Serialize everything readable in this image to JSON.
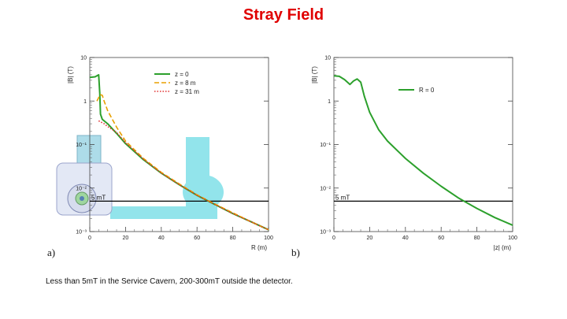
{
  "slide": {
    "title": "Stray Field",
    "caption": "Less than 5mT in the Service Cavern, 200-300mT outside the detector."
  },
  "colors": {
    "title": "#e00000",
    "z0": "#2ca02c",
    "z8": "#e8a000",
    "z31": "#e03030",
    "ref_line": "#000000",
    "cavern": "#7fe0e8"
  },
  "chart_data": [
    {
      "type": "line",
      "panel_label": "a)",
      "xlabel": "R (m)",
      "ylabel": "|B| (T)",
      "xlim": [
        0,
        100
      ],
      "ylim": [
        0.001,
        10
      ],
      "yscale": "log",
      "xticks": [
        0,
        20,
        40,
        60,
        80,
        100
      ],
      "yticks": [
        {
          "value": 0.001,
          "label": "10⁻³"
        },
        {
          "value": 0.01,
          "label": "10⁻²"
        },
        {
          "value": 0.1,
          "label": "10⁻¹"
        },
        {
          "value": 1,
          "label": "1"
        },
        {
          "value": 10,
          "label": "10"
        }
      ],
      "legend_position": "top-center",
      "reference_line": {
        "y": 0.005,
        "label": "5 mT"
      },
      "series": [
        {
          "name": "z = 0",
          "style": "solid",
          "x": [
            0,
            3,
            5,
            5.6,
            6,
            7,
            10,
            15,
            20,
            30,
            40,
            50,
            60,
            70,
            80,
            90,
            100
          ],
          "y": [
            3.5,
            3.6,
            4.0,
            1.5,
            0.5,
            0.38,
            0.3,
            0.18,
            0.105,
            0.045,
            0.022,
            0.012,
            0.0068,
            0.0042,
            0.0026,
            0.0017,
            0.0011
          ]
        },
        {
          "name": "z = 8 m",
          "style": "dashed",
          "x": [
            4,
            5,
            6,
            7,
            8,
            10,
            15,
            20,
            30,
            40,
            50,
            60,
            70,
            80,
            90,
            100
          ],
          "y": [
            1.0,
            1.2,
            1.4,
            1.35,
            1.0,
            0.6,
            0.25,
            0.12,
            0.048,
            0.023,
            0.0125,
            0.007,
            0.0043,
            0.0027,
            0.0017,
            0.0011
          ]
        },
        {
          "name": "z = 31 m",
          "style": "dotted",
          "x": [
            5,
            8,
            10,
            15,
            20,
            30,
            40,
            50,
            60,
            70,
            80,
            90,
            100
          ],
          "y": [
            0.35,
            0.3,
            0.26,
            0.19,
            0.11,
            0.046,
            0.022,
            0.012,
            0.0068,
            0.0042,
            0.0026,
            0.0017,
            0.0011
          ]
        }
      ]
    },
    {
      "type": "line",
      "panel_label": "b)",
      "xlabel": "|z| (m)",
      "ylabel": "|B| (T)",
      "xlim": [
        0,
        100
      ],
      "ylim": [
        0.001,
        10
      ],
      "yscale": "log",
      "xticks": [
        0,
        20,
        40,
        60,
        80,
        100
      ],
      "yticks": [
        {
          "value": 0.001,
          "label": "10⁻³"
        },
        {
          "value": 0.01,
          "label": "10⁻²"
        },
        {
          "value": 0.1,
          "label": "10⁻¹"
        },
        {
          "value": 1,
          "label": "1"
        },
        {
          "value": 10,
          "label": "10"
        }
      ],
      "legend_position": "top-center",
      "reference_line": {
        "y": 0.005,
        "label": "5 mT"
      },
      "series": [
        {
          "name": "R = 0",
          "style": "solid",
          "x": [
            0,
            3,
            6,
            9,
            11,
            13,
            15,
            17,
            20,
            25,
            30,
            40,
            50,
            60,
            70,
            80,
            90,
            100
          ],
          "y": [
            3.8,
            3.7,
            3.1,
            2.4,
            2.9,
            3.2,
            2.7,
            1.3,
            0.55,
            0.22,
            0.12,
            0.048,
            0.022,
            0.011,
            0.0058,
            0.0034,
            0.0021,
            0.0014
          ]
        }
      ]
    }
  ]
}
